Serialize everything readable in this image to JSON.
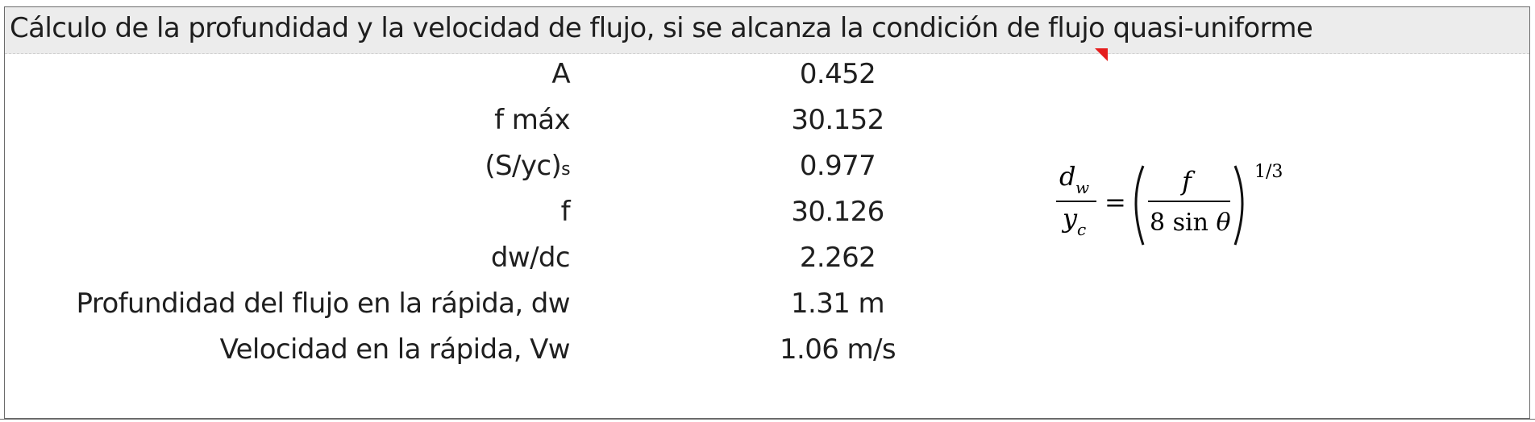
{
  "header": {
    "title": "Cálculo de la profundidad y la velocidad de flujo, si se alcanza la condición de flujo quasi-uniforme"
  },
  "rows": [
    {
      "label": "A",
      "value": "0.452"
    },
    {
      "label": "f máx",
      "value": "30.152"
    },
    {
      "label_main": "(S/yc)",
      "label_sub": "s",
      "value": "0.977"
    },
    {
      "label": "f",
      "value": "30.126"
    },
    {
      "label": "dw/dc",
      "value": "2.262"
    },
    {
      "label": "Profundidad del flujo en la rápida, dw",
      "value": "1.31 m"
    },
    {
      "label": "Velocidad en la rápida, Vw",
      "value": "1.06 m/s"
    }
  ],
  "formula": {
    "num_var": "d",
    "num_sub": "w",
    "den_var": "y",
    "den_sub": "c",
    "equals": "=",
    "inner_num": "f",
    "inner_den_coef": "8 sin ",
    "inner_den_var": "θ",
    "exponent": "1/3"
  },
  "colors": {
    "header_bg": "#ececec",
    "comment_marker": "#e51c1c",
    "border": "#6b6b6b"
  }
}
